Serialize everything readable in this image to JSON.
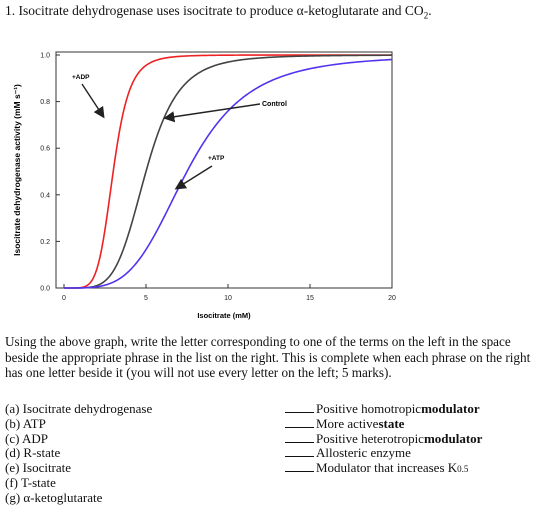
{
  "question": {
    "number": "1.",
    "text_before": "Isocitrate dehydrogenase uses isocitrate to produce α-ketoglutarate and CO",
    "subscript": "2",
    "text_after": "."
  },
  "chart_data": {
    "type": "line",
    "xlabel": "Isocitrate (mM)",
    "ylabel": "Isocitrate dehydrogenase activity (mM s⁻¹)",
    "xlim": [
      0,
      20
    ],
    "ylim": [
      0,
      1.0
    ],
    "x_ticks": [
      "0",
      "5",
      "10",
      "15",
      "20"
    ],
    "y_ticks": [
      "0.0",
      "0.2",
      "0.4",
      "0.6",
      "0.8",
      "1.0"
    ],
    "grid": false,
    "series": [
      {
        "name": "+ADP",
        "color": "#ee2222",
        "half_saturation_mM": 3.0,
        "hill": 6,
        "points": [
          [
            0,
            0
          ],
          [
            1,
            0.001
          ],
          [
            2,
            0.08
          ],
          [
            2.5,
            0.26
          ],
          [
            3,
            0.5
          ],
          [
            3.5,
            0.72
          ],
          [
            4,
            0.85
          ],
          [
            5,
            0.96
          ],
          [
            6,
            0.99
          ],
          [
            10,
            1.0
          ],
          [
            20,
            1.0
          ]
        ]
      },
      {
        "name": "Control",
        "color": "#444444",
        "half_saturation_mM": 5.0,
        "hill": 5,
        "points": [
          [
            0,
            0
          ],
          [
            2,
            0.01
          ],
          [
            3,
            0.07
          ],
          [
            4,
            0.25
          ],
          [
            5,
            0.5
          ],
          [
            6,
            0.71
          ],
          [
            7,
            0.84
          ],
          [
            8,
            0.91
          ],
          [
            10,
            0.97
          ],
          [
            15,
            0.99
          ],
          [
            20,
            1.0
          ]
        ]
      },
      {
        "name": "+ATP",
        "color": "#5533ee",
        "half_saturation_mM": 7.5,
        "hill": 4,
        "points": [
          [
            0,
            0
          ],
          [
            3,
            0.025
          ],
          [
            5,
            0.16
          ],
          [
            6,
            0.3
          ],
          [
            7,
            0.43
          ],
          [
            7.5,
            0.5
          ],
          [
            9,
            0.67
          ],
          [
            11,
            0.82
          ],
          [
            13,
            0.91
          ],
          [
            16,
            0.96
          ],
          [
            20,
            0.98
          ]
        ]
      }
    ],
    "annotations": [
      "+ADP",
      "Control",
      "+ATP"
    ]
  },
  "instructions": "Using the above graph, write the letter corresponding to one of the terms on the left in the space beside the appropriate phrase in the list on the right. This is complete when each phrase on the right has one letter beside it (you will not use every letter on the left; 5 marks).",
  "terms": [
    "(a) Isocitrate dehydrogenase",
    "(b) ATP",
    "(c) ADP",
    "(d) R-state",
    "(e) Isocitrate",
    "(f) T-state",
    "(g) α-ketoglutarate"
  ],
  "phrases": [
    {
      "plain": "Positive homotropic ",
      "bold": "modulator"
    },
    {
      "plain": "More active ",
      "bold": "state"
    },
    {
      "plain": "Positive heterotropic ",
      "bold": "modulator"
    },
    {
      "plain": "Allosteric enzyme",
      "bold": ""
    },
    {
      "plain": "Modulator that increases K",
      "bold": "",
      "subscript": "0.5"
    }
  ]
}
